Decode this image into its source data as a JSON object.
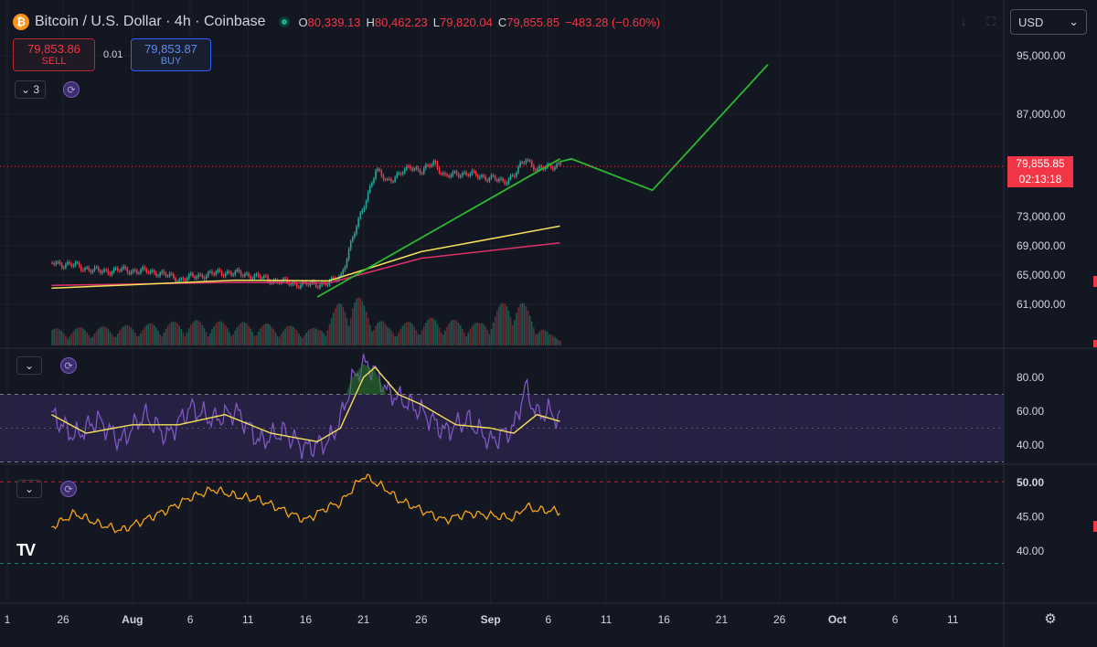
{
  "header": {
    "title": "Bitcoin / U.S. Dollar · 4h · Coinbase",
    "ohlc": {
      "o_label": "O",
      "o": "80,339.13",
      "h_label": "H",
      "h": "80,462.23",
      "l_label": "L",
      "l": "79,820.04",
      "c_label": "C",
      "c": "79,855.85",
      "change": "−483.28 (−0.60%)"
    },
    "logo_glyph": "₿"
  },
  "trade": {
    "sell_price": "79,853.86",
    "sell_label": "SELL",
    "spread": "0.01",
    "buy_price": "79,853.87",
    "buy_label": "BUY"
  },
  "indicators_collapsed": {
    "count": "3"
  },
  "currency": "USD",
  "last_price_tag": {
    "price": "79,855.85",
    "countdown": "02:13:18"
  },
  "tradingview_logo": "TV",
  "colors": {
    "background": "#131722",
    "up": "#26a69a",
    "down": "#f23645",
    "ema_fast": "#f5e15a",
    "ema_slow": "#e0306a",
    "trendline": "#2ab830",
    "rsi": "#7e57c2",
    "rsi_ma": "#f5e15a",
    "rsi_band": "#2a2348",
    "osc": "#f6a31a"
  },
  "chart_data": [
    {
      "type": "candlestick",
      "title": "Bitcoin / U.S. Dollar · 4h · Coinbase",
      "x_ticks": [
        "1",
        "26",
        "Aug",
        "6",
        "11",
        "16",
        "21",
        "26",
        "Sep",
        "6",
        "11",
        "16",
        "21",
        "26",
        "Oct",
        "6",
        "11"
      ],
      "y_ticks": [
        "95,000.00",
        "87,000.00",
        "73,000.00",
        "69,000.00",
        "65,000.00",
        "61,000.00"
      ],
      "ylim": [
        58000,
        98000
      ],
      "grid": true,
      "price_path": [
        [
          "Jul 25",
          66700
        ],
        [
          "Jul 27",
          66300
        ],
        [
          "Jul 29",
          65500
        ],
        [
          "Jul 31",
          65700
        ],
        [
          "Aug 3",
          65400
        ],
        [
          "Aug 5",
          64400
        ],
        [
          "Aug 7",
          65000
        ],
        [
          "Aug 9",
          65400
        ],
        [
          "Aug 11",
          65000
        ],
        [
          "Aug 13",
          64300
        ],
        [
          "Aug 15",
          63800
        ],
        [
          "Aug 16",
          63700
        ],
        [
          "Aug 18",
          63900
        ],
        [
          "Aug 19",
          65000
        ],
        [
          "Aug 20",
          70000
        ],
        [
          "Aug 21",
          74800
        ],
        [
          "Aug 22",
          79200
        ],
        [
          "Aug 23",
          78000
        ],
        [
          "Aug 24",
          78600
        ],
        [
          "Aug 25",
          80000
        ],
        [
          "Aug 26",
          79000
        ],
        [
          "Aug 27",
          80600
        ],
        [
          "Aug 28",
          78300
        ],
        [
          "Aug 29",
          79000
        ],
        [
          "Aug 31",
          78600
        ],
        [
          "Sep 2",
          77800
        ],
        [
          "Sep 3",
          78700
        ],
        [
          "Sep 4",
          81000
        ],
        [
          "Sep 5",
          79300
        ],
        [
          "Sep 6",
          79900
        ],
        [
          "Sep 7",
          80200
        ]
      ],
      "ema_fast": [
        [
          "Jul 25",
          63200
        ],
        [
          "Aug 10",
          64300
        ],
        [
          "Aug 18",
          64200
        ],
        [
          "Aug 26",
          68200
        ],
        [
          "Sep 7",
          71700
        ]
      ],
      "ema_slow": [
        [
          "Jul 25",
          63600
        ],
        [
          "Aug 10",
          64000
        ],
        [
          "Aug 18",
          63900
        ],
        [
          "Aug 26",
          67300
        ],
        [
          "Sep 7",
          69400
        ]
      ],
      "volume": [
        [
          "Jul 25",
          0.3
        ],
        [
          "Jul 31",
          0.35
        ],
        [
          "Aug 6",
          0.45
        ],
        [
          "Aug 12",
          0.4
        ],
        [
          "Aug 17",
          0.3
        ],
        [
          "Aug 19",
          0.8
        ],
        [
          "Aug 20",
          1.0
        ],
        [
          "Aug 21",
          0.75
        ],
        [
          "Aug 23",
          0.35
        ],
        [
          "Aug 27",
          0.5
        ],
        [
          "Aug 31",
          0.4
        ],
        [
          "Sep 3",
          0.95
        ],
        [
          "Sep 6",
          0.2
        ]
      ],
      "projection": [
        [
          "Sep 7",
          80500
        ],
        [
          "Sep 8",
          80900
        ],
        [
          "Sep 15",
          76600
        ],
        [
          "Sep 25",
          93800
        ]
      ],
      "trendline": [
        [
          "Aug 17",
          62000
        ],
        [
          "Sep 7",
          80900
        ]
      ],
      "last_price": 79855.85
    },
    {
      "type": "line",
      "title": "RSI",
      "y_ticks": [
        "80.00",
        "60.00",
        "40.00"
      ],
      "ylim": [
        28,
        92
      ],
      "bands": [
        30,
        70
      ],
      "rsi": [
        [
          "Jul 25",
          58
        ],
        [
          "Jul 27",
          45
        ],
        [
          "Jul 29",
          55
        ],
        [
          "Jul 31",
          42
        ],
        [
          "Aug 2",
          58
        ],
        [
          "Aug 4",
          45
        ],
        [
          "Aug 6",
          62
        ],
        [
          "Aug 8",
          55
        ],
        [
          "Aug 10",
          60
        ],
        [
          "Aug 12",
          42
        ],
        [
          "Aug 14",
          48
        ],
        [
          "Aug 16",
          38
        ],
        [
          "Aug 18",
          42
        ],
        [
          "Aug 19",
          55
        ],
        [
          "Aug 20",
          78
        ],
        [
          "Aug 21",
          88
        ],
        [
          "Aug 22",
          84
        ],
        [
          "Aug 23",
          72
        ],
        [
          "Aug 24",
          68
        ],
        [
          "Aug 26",
          60
        ],
        [
          "Aug 28",
          48
        ],
        [
          "Aug 30",
          55
        ],
        [
          "Sep 1",
          42
        ],
        [
          "Sep 3",
          50
        ],
        [
          "Sep 4",
          74
        ],
        [
          "Sep 5",
          58
        ],
        [
          "Sep 6",
          60
        ],
        [
          "Sep 7",
          55
        ]
      ],
      "rsi_ma": [
        [
          "Jul 25",
          58
        ],
        [
          "Jul 28",
          47
        ],
        [
          "Aug 1",
          52
        ],
        [
          "Aug 5",
          52
        ],
        [
          "Aug 9",
          58
        ],
        [
          "Aug 13",
          47
        ],
        [
          "Aug 17",
          42
        ],
        [
          "Aug 19",
          50
        ],
        [
          "Aug 21",
          80
        ],
        [
          "Aug 22",
          86
        ],
        [
          "Aug 24",
          70
        ],
        [
          "Aug 26",
          64
        ],
        [
          "Aug 29",
          52
        ],
        [
          "Sep 1",
          50
        ],
        [
          "Sep 3",
          47
        ],
        [
          "Sep 5",
          58
        ],
        [
          "Sep 7",
          54
        ]
      ]
    },
    {
      "type": "line",
      "title": "Oscillator",
      "y_ticks": [
        "50.00",
        "45.00",
        "40.00"
      ],
      "ylim": [
        37,
        51.5
      ],
      "bands": [
        38.2,
        50.1
      ],
      "values": [
        [
          "Jul 25",
          43.5
        ],
        [
          "Jul 27",
          45.5
        ],
        [
          "Jul 29",
          44
        ],
        [
          "Jul 31",
          43
        ],
        [
          "Aug 2",
          44.5
        ],
        [
          "Aug 4",
          46
        ],
        [
          "Aug 6",
          47.8
        ],
        [
          "Aug 8",
          49
        ],
        [
          "Aug 10",
          48
        ],
        [
          "Aug 12",
          47.5
        ],
        [
          "Aug 14",
          46
        ],
        [
          "Aug 16",
          44.5
        ],
        [
          "Aug 18",
          46.5
        ],
        [
          "Aug 19",
          47
        ],
        [
          "Aug 20",
          49
        ],
        [
          "Aug 21",
          51
        ],
        [
          "Aug 22",
          50
        ],
        [
          "Aug 23",
          49
        ],
        [
          "Aug 24",
          47.5
        ],
        [
          "Aug 26",
          46
        ],
        [
          "Aug 28",
          44.5
        ],
        [
          "Aug 30",
          45.5
        ],
        [
          "Sep 1",
          45.2
        ],
        [
          "Sep 3",
          44.8
        ],
        [
          "Sep 4",
          46.5
        ],
        [
          "Sep 5",
          46
        ],
        [
          "Sep 7",
          45.8
        ]
      ]
    }
  ]
}
